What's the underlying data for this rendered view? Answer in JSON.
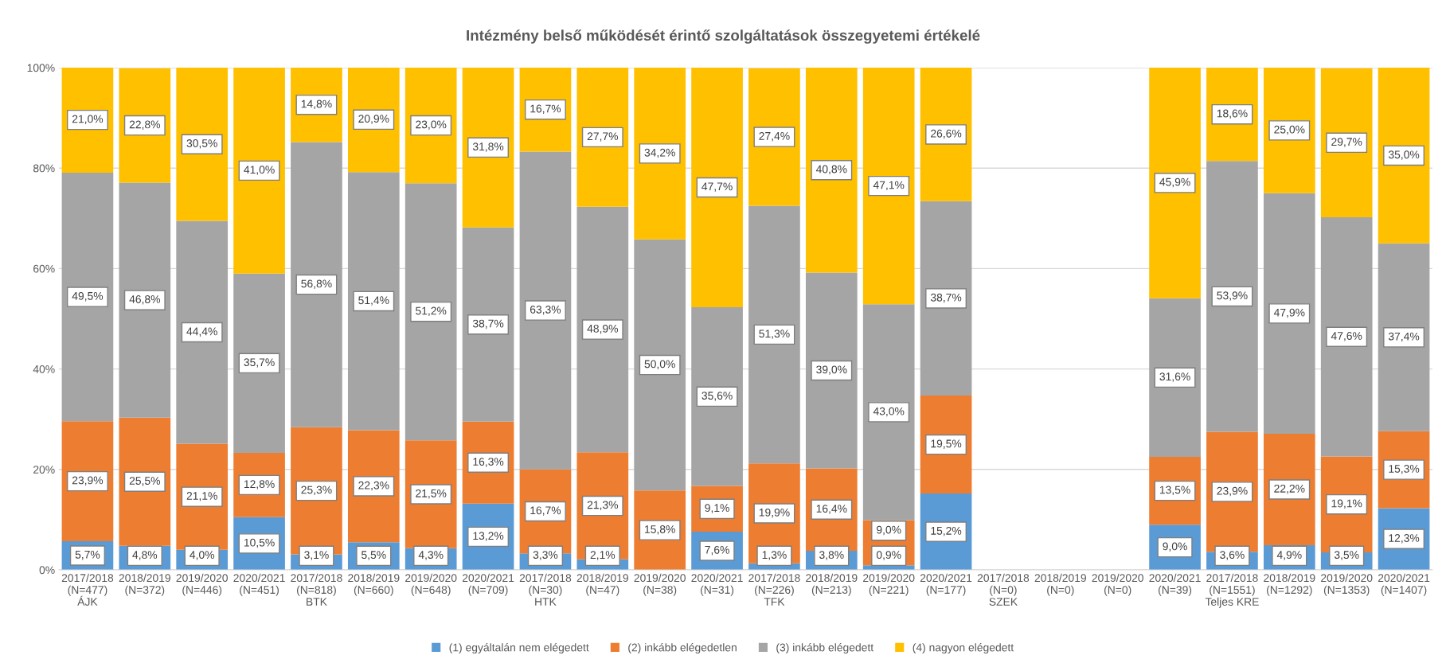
{
  "chart_data": {
    "type": "bar",
    "stacked": true,
    "title": "Intézmény belső működését érintő szolgáltatások összegyetemi értékelé",
    "categories": [
      "2017/2018\n(N=477)\nÁJK",
      "2018/2019\n(N=372)",
      "2019/2020\n(N=446)",
      "2020/2021\n(N=451)",
      "2017/2018\n(N=818)\nBTK",
      "2018/2019\n(N=660)",
      "2019/2020\n(N=648)",
      "2020/2021\n(N=709)",
      "2017/2018\n(N=30)\nHTK",
      "2018/2019\n(N=47)",
      "2019/2020\n(N=38)",
      "2020/2021\n(N=31)",
      "2017/2018\n(N=226)\nTFK",
      "2018/2019\n(N=213)",
      "2019/2020\n(N=221)",
      "2020/2021\n(N=177)",
      "2017/2018\n(N=0)\nSZEK",
      "2018/2019\n(N=0)",
      "2019/2020\n(N=0)",
      "2020/2021\n(N=39)",
      "2017/2018\n(N=1551)\nTeljes KRE",
      "2018/2019\n(N=1292)",
      "2019/2020\n(N=1353)",
      "2020/2021\n(N=1407)"
    ],
    "series": [
      {
        "name": "(1) egyáltalán nem elégedett",
        "color": "#5b9bd5",
        "values": [
          5.7,
          4.8,
          4.0,
          10.5,
          3.1,
          5.5,
          4.3,
          13.2,
          3.3,
          2.1,
          null,
          7.6,
          1.3,
          3.8,
          0.9,
          15.2,
          null,
          null,
          null,
          9.0,
          3.6,
          4.9,
          3.5,
          12.3
        ],
        "value_labels": [
          "5,7%",
          "4,8%",
          "4,0%",
          "10,5%",
          "3,1%",
          "5,5%",
          "4,3%",
          "13,2%",
          "3,3%",
          "2,1%",
          null,
          "7,6%",
          "1,3%",
          "3,8%",
          "0,9%",
          "15,2%",
          null,
          null,
          null,
          "9,0%",
          "3,6%",
          "4,9%",
          "3,5%",
          "12,3%"
        ]
      },
      {
        "name": "(2) inkább elégedetlen",
        "color": "#ed7d31",
        "values": [
          23.9,
          25.5,
          21.1,
          12.8,
          25.3,
          22.3,
          21.5,
          16.3,
          16.7,
          21.3,
          15.8,
          9.1,
          19.9,
          16.4,
          9.0,
          19.5,
          null,
          null,
          null,
          13.5,
          23.9,
          22.2,
          19.1,
          15.3
        ],
        "value_labels": [
          "23,9%",
          "25,5%",
          "21,1%",
          "12,8%",
          "25,3%",
          "22,3%",
          "21,5%",
          "16,3%",
          "16,7%",
          "21,3%",
          "15,8%",
          "9,1%",
          "19,9%",
          "16,4%",
          "9,0%",
          "19,5%",
          null,
          null,
          null,
          "13,5%",
          "23,9%",
          "22,2%",
          "19,1%",
          "15,3%"
        ]
      },
      {
        "name": "(3) inkább elégedett",
        "color": "#a5a5a5",
        "values": [
          49.5,
          46.8,
          44.4,
          35.7,
          56.8,
          51.4,
          51.2,
          38.7,
          63.3,
          48.9,
          50.0,
          35.6,
          51.3,
          39.0,
          43.0,
          38.7,
          null,
          null,
          null,
          31.6,
          53.9,
          47.9,
          47.6,
          37.4
        ],
        "value_labels": [
          "49,5%",
          "46,8%",
          "44,4%",
          "35,7%",
          "56,8%",
          "51,4%",
          "51,2%",
          "38,7%",
          "63,3%",
          "48,9%",
          "50,0%",
          "35,6%",
          "51,3%",
          "39,0%",
          "43,0%",
          "38,7%",
          null,
          null,
          null,
          "31,6%",
          "53,9%",
          "47,9%",
          "47,6%",
          "37,4%"
        ]
      },
      {
        "name": "(4) nagyon elégedett",
        "color": "#ffc000",
        "values": [
          21.0,
          22.8,
          30.5,
          41.0,
          14.8,
          20.9,
          23.0,
          31.8,
          16.7,
          27.7,
          34.2,
          47.7,
          27.4,
          40.8,
          47.1,
          26.6,
          null,
          null,
          null,
          45.9,
          18.6,
          25.0,
          29.7,
          35.0
        ],
        "value_labels": [
          "21,0%",
          "22,8%",
          "30,5%",
          "41,0%",
          "14,8%",
          "20,9%",
          "23,0%",
          "31,8%",
          "16,7%",
          "27,7%",
          "34,2%",
          "47,7%",
          "27,4%",
          "40,8%",
          "47,1%",
          "26,6%",
          null,
          null,
          null,
          "45,9%",
          "18,6%",
          "25,0%",
          "29,7%",
          "35,0%"
        ]
      }
    ],
    "ylim": [
      0,
      100
    ],
    "yticks": [
      {
        "value": 0,
        "label": "0%"
      },
      {
        "value": 20,
        "label": "20%"
      },
      {
        "value": 40,
        "label": "40%"
      },
      {
        "value": 60,
        "label": "60%"
      },
      {
        "value": 80,
        "label": "80%"
      },
      {
        "value": 100,
        "label": "100%"
      }
    ],
    "grid": "y",
    "legend": "bottom"
  }
}
